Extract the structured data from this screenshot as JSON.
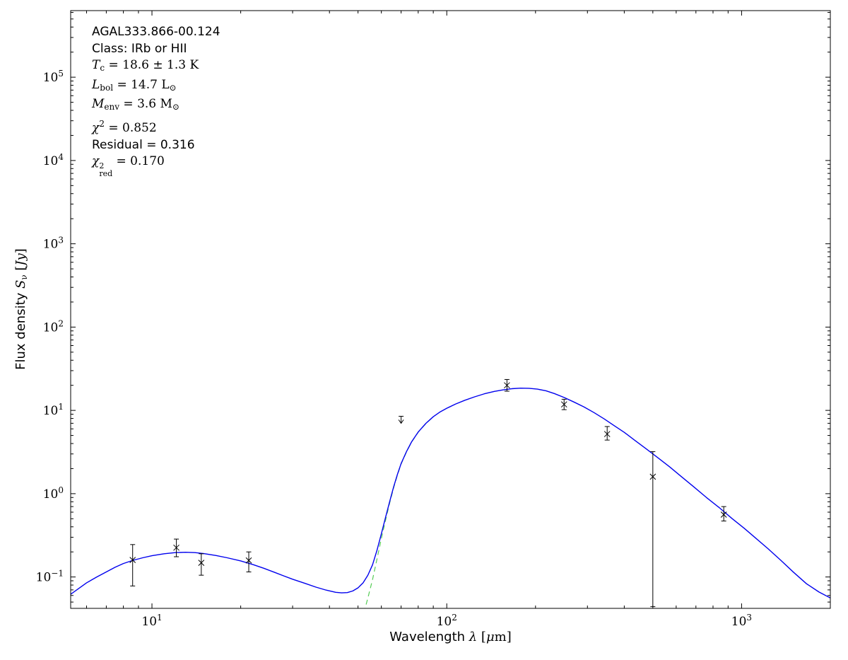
{
  "chart_data": {
    "type": "line",
    "x_scale": "log",
    "y_scale": "log",
    "xlim": [
      5.3,
      2000
    ],
    "ylim": [
      0.042,
      630000
    ],
    "x_major_tick_exponents": [
      1,
      2,
      3
    ],
    "y_major_tick_exponents": [
      -1,
      0,
      1,
      2,
      3,
      4,
      5
    ],
    "colors": {
      "model_total": "#0000ee",
      "model_greybody": "#55cc55",
      "data_points": "#000000",
      "frame": "#000000"
    },
    "xlabel_segments": [
      {
        "t": "Wavelength ",
        "s": "sans"
      },
      {
        "t": "λ",
        "s": "it"
      },
      {
        "t": " [",
        "s": "rm"
      },
      {
        "t": "μ",
        "s": "it"
      },
      {
        "t": "m]",
        "s": "rm"
      }
    ],
    "ylabel_segments": [
      {
        "t": "Flux density ",
        "s": "sans"
      },
      {
        "t": "S",
        "s": "it"
      },
      {
        "t": "ν",
        "s": "sub"
      },
      {
        "t": " [",
        "s": "rm"
      },
      {
        "t": "Jy",
        "s": "it"
      },
      {
        "t": "]",
        "s": "rm"
      }
    ],
    "annotation_lines": [
      {
        "name": "source-name",
        "segments": [
          {
            "t": "AGAL333.866-00.124",
            "s": "sans"
          }
        ]
      },
      {
        "name": "class",
        "segments": [
          {
            "t": "Class: IRb or HII",
            "s": "sans"
          }
        ]
      },
      {
        "name": "dust-temperature",
        "segments": [
          {
            "t": "T",
            "s": "it"
          },
          {
            "t": "c",
            "s": "sub"
          },
          {
            "t": " = 18.6 ± 1.3 K",
            "s": "rm"
          }
        ]
      },
      {
        "name": "bolometric-luminosity",
        "segments": [
          {
            "t": "L",
            "s": "it"
          },
          {
            "t": "bol",
            "s": "sub"
          },
          {
            "t": " = 14.7 L",
            "s": "rm"
          },
          {
            "t": "⊙",
            "s": "sub"
          }
        ]
      },
      {
        "name": "envelope-mass",
        "segments": [
          {
            "t": "M",
            "s": "it"
          },
          {
            "t": "env",
            "s": "sub"
          },
          {
            "t": " = 3.6 M",
            "s": "rm"
          },
          {
            "t": "⊙",
            "s": "sub"
          }
        ]
      },
      {
        "name": "chi-squared",
        "segments": [
          {
            "t": "χ",
            "s": "it"
          },
          {
            "t": "2",
            "s": "sup"
          },
          {
            "t": " = 0.852",
            "s": "rm"
          }
        ]
      },
      {
        "name": "residual",
        "segments": [
          {
            "t": "Residual = 0.316",
            "s": "sans"
          }
        ]
      },
      {
        "name": "chi-squared-reduced",
        "segments": [
          {
            "t": "χ",
            "s": "it"
          },
          {
            "t": "2|red",
            "s": "stack"
          },
          {
            "t": " = 0.170",
            "s": "rm"
          }
        ]
      }
    ],
    "series": [
      {
        "name": "model-greybody-component",
        "style": "dashed",
        "points": [
          [
            48,
            0.012
          ],
          [
            50,
            0.021
          ],
          [
            52,
            0.034
          ],
          [
            54,
            0.056
          ],
          [
            56,
            0.093
          ],
          [
            58,
            0.165
          ],
          [
            60,
            0.29
          ],
          [
            62,
            0.48
          ],
          [
            64,
            0.77
          ],
          [
            66,
            1.17
          ],
          [
            68,
            1.67
          ],
          [
            70,
            2.27
          ],
          [
            73,
            3.17
          ],
          [
            76,
            4.17
          ],
          [
            80,
            5.47
          ],
          [
            85,
            6.97
          ],
          [
            90,
            8.37
          ]
        ]
      },
      {
        "name": "model-total-fit",
        "style": "solid",
        "points": [
          [
            5.3,
            0.062
          ],
          [
            6,
            0.085
          ],
          [
            6.5,
            0.1
          ],
          [
            7,
            0.115
          ],
          [
            7.5,
            0.131
          ],
          [
            8,
            0.145
          ],
          [
            8.6,
            0.158
          ],
          [
            9.3,
            0.17
          ],
          [
            10,
            0.18
          ],
          [
            11,
            0.19
          ],
          [
            12,
            0.196
          ],
          [
            13,
            0.198
          ],
          [
            14,
            0.196
          ],
          [
            15,
            0.191
          ],
          [
            16.5,
            0.181
          ],
          [
            18,
            0.17
          ],
          [
            20,
            0.156
          ],
          [
            22,
            0.141
          ],
          [
            24,
            0.127
          ],
          [
            26,
            0.114
          ],
          [
            28,
            0.103
          ],
          [
            30,
            0.094
          ],
          [
            33,
            0.084
          ],
          [
            36,
            0.0755
          ],
          [
            39,
            0.0695
          ],
          [
            42,
            0.0655
          ],
          [
            44,
            0.0645
          ],
          [
            46,
            0.065
          ],
          [
            48,
            0.068
          ],
          [
            50,
            0.074
          ],
          [
            52,
            0.085
          ],
          [
            54,
            0.105
          ],
          [
            56,
            0.14
          ],
          [
            58,
            0.21
          ],
          [
            60,
            0.33
          ],
          [
            62,
            0.52
          ],
          [
            64,
            0.8
          ],
          [
            66,
            1.2
          ],
          [
            68,
            1.7
          ],
          [
            70,
            2.3
          ],
          [
            73,
            3.2
          ],
          [
            76,
            4.2
          ],
          [
            80,
            5.5
          ],
          [
            85,
            7.0
          ],
          [
            90,
            8.4
          ],
          [
            95,
            9.6
          ],
          [
            100,
            10.6
          ],
          [
            107,
            11.9
          ],
          [
            115,
            13.2
          ],
          [
            124,
            14.5
          ],
          [
            134,
            15.8
          ],
          [
            145,
            16.9
          ],
          [
            155,
            17.6
          ],
          [
            166,
            18.2
          ],
          [
            178,
            18.5
          ],
          [
            190,
            18.4
          ],
          [
            203,
            18.0
          ],
          [
            217,
            17.2
          ],
          [
            232,
            15.9
          ],
          [
            250,
            14.3
          ],
          [
            270,
            12.6
          ],
          [
            292,
            11.0
          ],
          [
            316,
            9.4
          ],
          [
            342,
            7.9
          ],
          [
            370,
            6.55
          ],
          [
            400,
            5.45
          ],
          [
            435,
            4.35
          ],
          [
            475,
            3.45
          ],
          [
            520,
            2.7
          ],
          [
            570,
            2.1
          ],
          [
            625,
            1.6
          ],
          [
            690,
            1.2
          ],
          [
            760,
            0.9
          ],
          [
            840,
            0.68
          ],
          [
            930,
            0.5
          ],
          [
            1020,
            0.385
          ],
          [
            1120,
            0.29
          ],
          [
            1230,
            0.218
          ],
          [
            1360,
            0.158
          ],
          [
            1500,
            0.114
          ],
          [
            1660,
            0.083
          ],
          [
            1830,
            0.066
          ],
          [
            2000,
            0.056
          ]
        ]
      }
    ],
    "data_points": [
      {
        "x": 8.6,
        "y": 0.16,
        "lo": 0.078,
        "hi": 0.245
      },
      {
        "x": 12.1,
        "y": 0.225,
        "lo": 0.175,
        "hi": 0.285
      },
      {
        "x": 14.7,
        "y": 0.148,
        "lo": 0.105,
        "hi": 0.19
      },
      {
        "x": 21.3,
        "y": 0.158,
        "lo": 0.115,
        "hi": 0.2
      },
      {
        "x": 70,
        "y": 7.9,
        "lo": 7.0,
        "hi": 8.5,
        "limit": true
      },
      {
        "x": 160,
        "y": 20.0,
        "lo": 17.0,
        "hi": 23.5
      },
      {
        "x": 250,
        "y": 11.8,
        "lo": 10.2,
        "hi": 13.6
      },
      {
        "x": 350,
        "y": 5.2,
        "lo": 4.4,
        "hi": 6.4
      },
      {
        "x": 500,
        "y": 1.6,
        "lo": 0.044,
        "hi": 3.2
      },
      {
        "x": 870,
        "y": 0.56,
        "lo": 0.47,
        "hi": 0.7
      }
    ]
  }
}
